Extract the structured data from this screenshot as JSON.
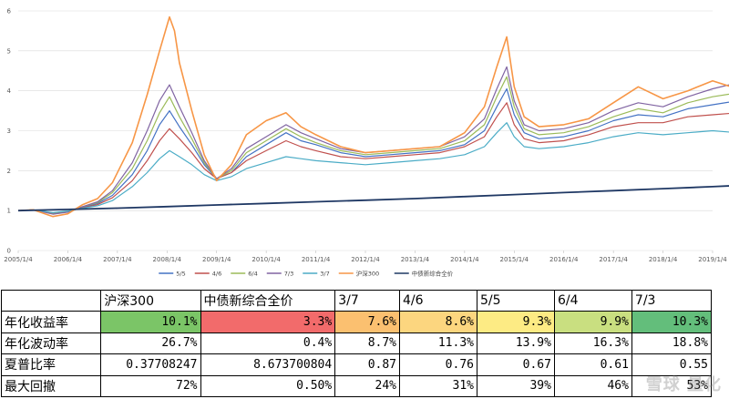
{
  "chart_data": {
    "type": "line",
    "ylim": [
      0,
      6
    ],
    "yticks": [
      "0",
      "1",
      "2",
      "3",
      "4",
      "5",
      "6"
    ],
    "xticks": [
      "2005/1/4",
      "2006/1/4",
      "2007/1/4",
      "2008/1/4",
      "2009/1/4",
      "2010/1/4",
      "2011/1/4",
      "2012/1/4",
      "2013/1/4",
      "2014/1/4",
      "2015/1/4",
      "2016/1/4",
      "2017/1/4",
      "2018/1/4",
      "2019/1/4"
    ],
    "grid": true,
    "legend_position": "bottom",
    "series": [
      {
        "name": "5/5",
        "color": "#4472C4",
        "width": 1.2,
        "points": [
          [
            0,
            1.0
          ],
          [
            0.3,
            1.02
          ],
          [
            0.7,
            0.93
          ],
          [
            1.0,
            0.97
          ],
          [
            1.3,
            1.08
          ],
          [
            1.6,
            1.18
          ],
          [
            1.9,
            1.38
          ],
          [
            2.3,
            1.9
          ],
          [
            2.6,
            2.5
          ],
          [
            2.85,
            3.15
          ],
          [
            3.05,
            3.5
          ],
          [
            3.25,
            3.1
          ],
          [
            3.5,
            2.65
          ],
          [
            3.75,
            2.15
          ],
          [
            4.0,
            1.8
          ],
          [
            4.3,
            1.95
          ],
          [
            4.6,
            2.35
          ],
          [
            5.0,
            2.65
          ],
          [
            5.4,
            2.95
          ],
          [
            5.7,
            2.75
          ],
          [
            6.0,
            2.65
          ],
          [
            6.5,
            2.45
          ],
          [
            7.0,
            2.35
          ],
          [
            7.5,
            2.4
          ],
          [
            8.0,
            2.45
          ],
          [
            8.5,
            2.5
          ],
          [
            9.0,
            2.65
          ],
          [
            9.4,
            3.0
          ],
          [
            9.65,
            3.6
          ],
          [
            9.85,
            4.05
          ],
          [
            10.0,
            3.4
          ],
          [
            10.2,
            2.95
          ],
          [
            10.5,
            2.8
          ],
          [
            11.0,
            2.85
          ],
          [
            11.5,
            3.0
          ],
          [
            12.0,
            3.25
          ],
          [
            12.5,
            3.4
          ],
          [
            13.0,
            3.35
          ],
          [
            13.5,
            3.55
          ],
          [
            14.0,
            3.65
          ],
          [
            14.5,
            3.75
          ]
        ]
      },
      {
        "name": "4/6",
        "color": "#C0504D",
        "width": 1.2,
        "points": [
          [
            0,
            1.0
          ],
          [
            0.3,
            1.02
          ],
          [
            0.7,
            0.94
          ],
          [
            1.0,
            0.98
          ],
          [
            1.3,
            1.07
          ],
          [
            1.6,
            1.15
          ],
          [
            1.9,
            1.32
          ],
          [
            2.3,
            1.75
          ],
          [
            2.6,
            2.25
          ],
          [
            2.85,
            2.75
          ],
          [
            3.05,
            3.05
          ],
          [
            3.25,
            2.8
          ],
          [
            3.5,
            2.45
          ],
          [
            3.75,
            2.05
          ],
          [
            4.0,
            1.8
          ],
          [
            4.3,
            1.95
          ],
          [
            4.6,
            2.25
          ],
          [
            5.0,
            2.5
          ],
          [
            5.4,
            2.75
          ],
          [
            5.7,
            2.6
          ],
          [
            6.0,
            2.5
          ],
          [
            6.5,
            2.35
          ],
          [
            7.0,
            2.3
          ],
          [
            7.5,
            2.35
          ],
          [
            8.0,
            2.4
          ],
          [
            8.5,
            2.45
          ],
          [
            9.0,
            2.6
          ],
          [
            9.4,
            2.85
          ],
          [
            9.65,
            3.35
          ],
          [
            9.85,
            3.7
          ],
          [
            10.0,
            3.15
          ],
          [
            10.2,
            2.8
          ],
          [
            10.5,
            2.7
          ],
          [
            11.0,
            2.75
          ],
          [
            11.5,
            2.9
          ],
          [
            12.0,
            3.1
          ],
          [
            12.5,
            3.2
          ],
          [
            13.0,
            3.2
          ],
          [
            13.5,
            3.35
          ],
          [
            14.0,
            3.4
          ],
          [
            14.5,
            3.45
          ]
        ]
      },
      {
        "name": "6/4",
        "color": "#9BBB59",
        "width": 1.2,
        "points": [
          [
            0,
            1.0
          ],
          [
            0.3,
            1.02
          ],
          [
            0.7,
            0.92
          ],
          [
            1.0,
            0.97
          ],
          [
            1.3,
            1.1
          ],
          [
            1.6,
            1.2
          ],
          [
            1.9,
            1.45
          ],
          [
            2.3,
            2.05
          ],
          [
            2.6,
            2.75
          ],
          [
            2.85,
            3.45
          ],
          [
            3.05,
            3.85
          ],
          [
            3.25,
            3.35
          ],
          [
            3.5,
            2.8
          ],
          [
            3.75,
            2.2
          ],
          [
            4.0,
            1.8
          ],
          [
            4.3,
            2.0
          ],
          [
            4.6,
            2.45
          ],
          [
            5.0,
            2.75
          ],
          [
            5.4,
            3.05
          ],
          [
            5.7,
            2.85
          ],
          [
            6.0,
            2.7
          ],
          [
            6.5,
            2.5
          ],
          [
            7.0,
            2.4
          ],
          [
            7.5,
            2.45
          ],
          [
            8.0,
            2.5
          ],
          [
            8.5,
            2.55
          ],
          [
            9.0,
            2.75
          ],
          [
            9.4,
            3.15
          ],
          [
            9.65,
            3.85
          ],
          [
            9.85,
            4.35
          ],
          [
            10.0,
            3.6
          ],
          [
            10.2,
            3.05
          ],
          [
            10.5,
            2.9
          ],
          [
            11.0,
            2.95
          ],
          [
            11.5,
            3.1
          ],
          [
            12.0,
            3.35
          ],
          [
            12.5,
            3.55
          ],
          [
            13.0,
            3.45
          ],
          [
            13.5,
            3.7
          ],
          [
            14.0,
            3.85
          ],
          [
            14.5,
            3.95
          ]
        ]
      },
      {
        "name": "7/3",
        "color": "#8064A2",
        "width": 1.2,
        "points": [
          [
            0,
            1.0
          ],
          [
            0.3,
            1.02
          ],
          [
            0.7,
            0.91
          ],
          [
            1.0,
            0.96
          ],
          [
            1.3,
            1.1
          ],
          [
            1.6,
            1.22
          ],
          [
            1.9,
            1.5
          ],
          [
            2.3,
            2.2
          ],
          [
            2.6,
            3.0
          ],
          [
            2.85,
            3.75
          ],
          [
            3.05,
            4.15
          ],
          [
            3.25,
            3.6
          ],
          [
            3.5,
            2.95
          ],
          [
            3.75,
            2.25
          ],
          [
            4.0,
            1.8
          ],
          [
            4.3,
            2.05
          ],
          [
            4.6,
            2.55
          ],
          [
            5.0,
            2.85
          ],
          [
            5.4,
            3.15
          ],
          [
            5.7,
            2.95
          ],
          [
            6.0,
            2.8
          ],
          [
            6.5,
            2.55
          ],
          [
            7.0,
            2.45
          ],
          [
            7.5,
            2.5
          ],
          [
            8.0,
            2.55
          ],
          [
            8.5,
            2.6
          ],
          [
            9.0,
            2.85
          ],
          [
            9.4,
            3.3
          ],
          [
            9.65,
            4.05
          ],
          [
            9.85,
            4.6
          ],
          [
            10.0,
            3.75
          ],
          [
            10.2,
            3.15
          ],
          [
            10.5,
            3.0
          ],
          [
            11.0,
            3.05
          ],
          [
            11.5,
            3.2
          ],
          [
            12.0,
            3.5
          ],
          [
            12.5,
            3.7
          ],
          [
            13.0,
            3.6
          ],
          [
            13.5,
            3.85
          ],
          [
            14.0,
            4.05
          ],
          [
            14.5,
            4.2
          ]
        ]
      },
      {
        "name": "3/7",
        "color": "#4BACC6",
        "width": 1.2,
        "points": [
          [
            0,
            1.0
          ],
          [
            0.3,
            1.02
          ],
          [
            0.7,
            0.95
          ],
          [
            1.0,
            0.99
          ],
          [
            1.3,
            1.06
          ],
          [
            1.6,
            1.12
          ],
          [
            1.9,
            1.25
          ],
          [
            2.3,
            1.6
          ],
          [
            2.6,
            1.95
          ],
          [
            2.85,
            2.3
          ],
          [
            3.05,
            2.5
          ],
          [
            3.25,
            2.35
          ],
          [
            3.5,
            2.15
          ],
          [
            3.75,
            1.9
          ],
          [
            4.0,
            1.75
          ],
          [
            4.3,
            1.85
          ],
          [
            4.6,
            2.05
          ],
          [
            5.0,
            2.2
          ],
          [
            5.4,
            2.35
          ],
          [
            5.7,
            2.3
          ],
          [
            6.0,
            2.25
          ],
          [
            6.5,
            2.2
          ],
          [
            7.0,
            2.15
          ],
          [
            7.5,
            2.2
          ],
          [
            8.0,
            2.25
          ],
          [
            8.5,
            2.3
          ],
          [
            9.0,
            2.4
          ],
          [
            9.4,
            2.6
          ],
          [
            9.65,
            2.95
          ],
          [
            9.85,
            3.2
          ],
          [
            10.0,
            2.85
          ],
          [
            10.2,
            2.6
          ],
          [
            10.5,
            2.55
          ],
          [
            11.0,
            2.6
          ],
          [
            11.5,
            2.7
          ],
          [
            12.0,
            2.85
          ],
          [
            12.5,
            2.95
          ],
          [
            13.0,
            2.9
          ],
          [
            13.5,
            2.95
          ],
          [
            14.0,
            3.0
          ],
          [
            14.5,
            2.95
          ]
        ]
      },
      {
        "name": "沪深300",
        "color": "#F79646",
        "width": 1.6,
        "points": [
          [
            0,
            1.0
          ],
          [
            0.3,
            1.02
          ],
          [
            0.7,
            0.85
          ],
          [
            1.0,
            0.92
          ],
          [
            1.3,
            1.15
          ],
          [
            1.6,
            1.3
          ],
          [
            1.9,
            1.7
          ],
          [
            2.3,
            2.7
          ],
          [
            2.6,
            3.9
          ],
          [
            2.85,
            5.0
          ],
          [
            3.05,
            5.85
          ],
          [
            3.15,
            5.5
          ],
          [
            3.25,
            4.7
          ],
          [
            3.5,
            3.5
          ],
          [
            3.75,
            2.4
          ],
          [
            4.0,
            1.75
          ],
          [
            4.3,
            2.15
          ],
          [
            4.6,
            2.9
          ],
          [
            5.0,
            3.25
          ],
          [
            5.4,
            3.45
          ],
          [
            5.7,
            3.1
          ],
          [
            6.0,
            2.9
          ],
          [
            6.5,
            2.6
          ],
          [
            7.0,
            2.45
          ],
          [
            7.5,
            2.5
          ],
          [
            8.0,
            2.55
          ],
          [
            8.5,
            2.6
          ],
          [
            9.0,
            2.95
          ],
          [
            9.4,
            3.6
          ],
          [
            9.65,
            4.6
          ],
          [
            9.85,
            5.35
          ],
          [
            10.0,
            4.1
          ],
          [
            10.2,
            3.35
          ],
          [
            10.5,
            3.1
          ],
          [
            11.0,
            3.15
          ],
          [
            11.5,
            3.3
          ],
          [
            12.0,
            3.7
          ],
          [
            12.5,
            4.1
          ],
          [
            13.0,
            3.8
          ],
          [
            13.5,
            4.0
          ],
          [
            14.0,
            4.25
          ],
          [
            14.5,
            4.05
          ]
        ]
      },
      {
        "name": "中债新综合全价",
        "color": "#1F3864",
        "width": 1.8,
        "points": [
          [
            0,
            1.0
          ],
          [
            1.0,
            1.03
          ],
          [
            2.0,
            1.06
          ],
          [
            3.0,
            1.1
          ],
          [
            4.0,
            1.14
          ],
          [
            5.0,
            1.18
          ],
          [
            6.0,
            1.22
          ],
          [
            7.0,
            1.26
          ],
          [
            8.0,
            1.3
          ],
          [
            9.0,
            1.35
          ],
          [
            10.0,
            1.4
          ],
          [
            11.0,
            1.45
          ],
          [
            12.0,
            1.5
          ],
          [
            13.0,
            1.55
          ],
          [
            14.0,
            1.6
          ],
          [
            14.5,
            1.63
          ]
        ]
      }
    ]
  },
  "table": {
    "header": [
      "",
      "沪深300",
      "中债新综合全价",
      "3/7",
      "4/6",
      "5/5",
      "6/4",
      "7/3"
    ],
    "rows": [
      {
        "label": "年化收益率",
        "cells": [
          "10.1%",
          "3.3%",
          "7.6%",
          "8.6%",
          "9.3%",
          "9.9%",
          "10.3%"
        ],
        "colors": [
          "#7BC567",
          "#F26B6B",
          "#FBC070",
          "#FCD67F",
          "#FDEB84",
          "#C9DF80",
          "#63BE7B"
        ]
      },
      {
        "label": "年化波动率",
        "cells": [
          "26.7%",
          "0.4%",
          "8.7%",
          "11.3%",
          "13.9%",
          "16.3%",
          "18.8%"
        ]
      },
      {
        "label": "夏普比率",
        "cells": [
          "0.37708247",
          "8.673700804",
          "0.87",
          "0.76",
          "0.67",
          "0.61",
          "0.55"
        ]
      },
      {
        "label": "最大回撤",
        "cells": [
          "72%",
          "0.50%",
          "24%",
          "31%",
          "39%",
          "46%",
          "53%"
        ]
      }
    ]
  }
}
